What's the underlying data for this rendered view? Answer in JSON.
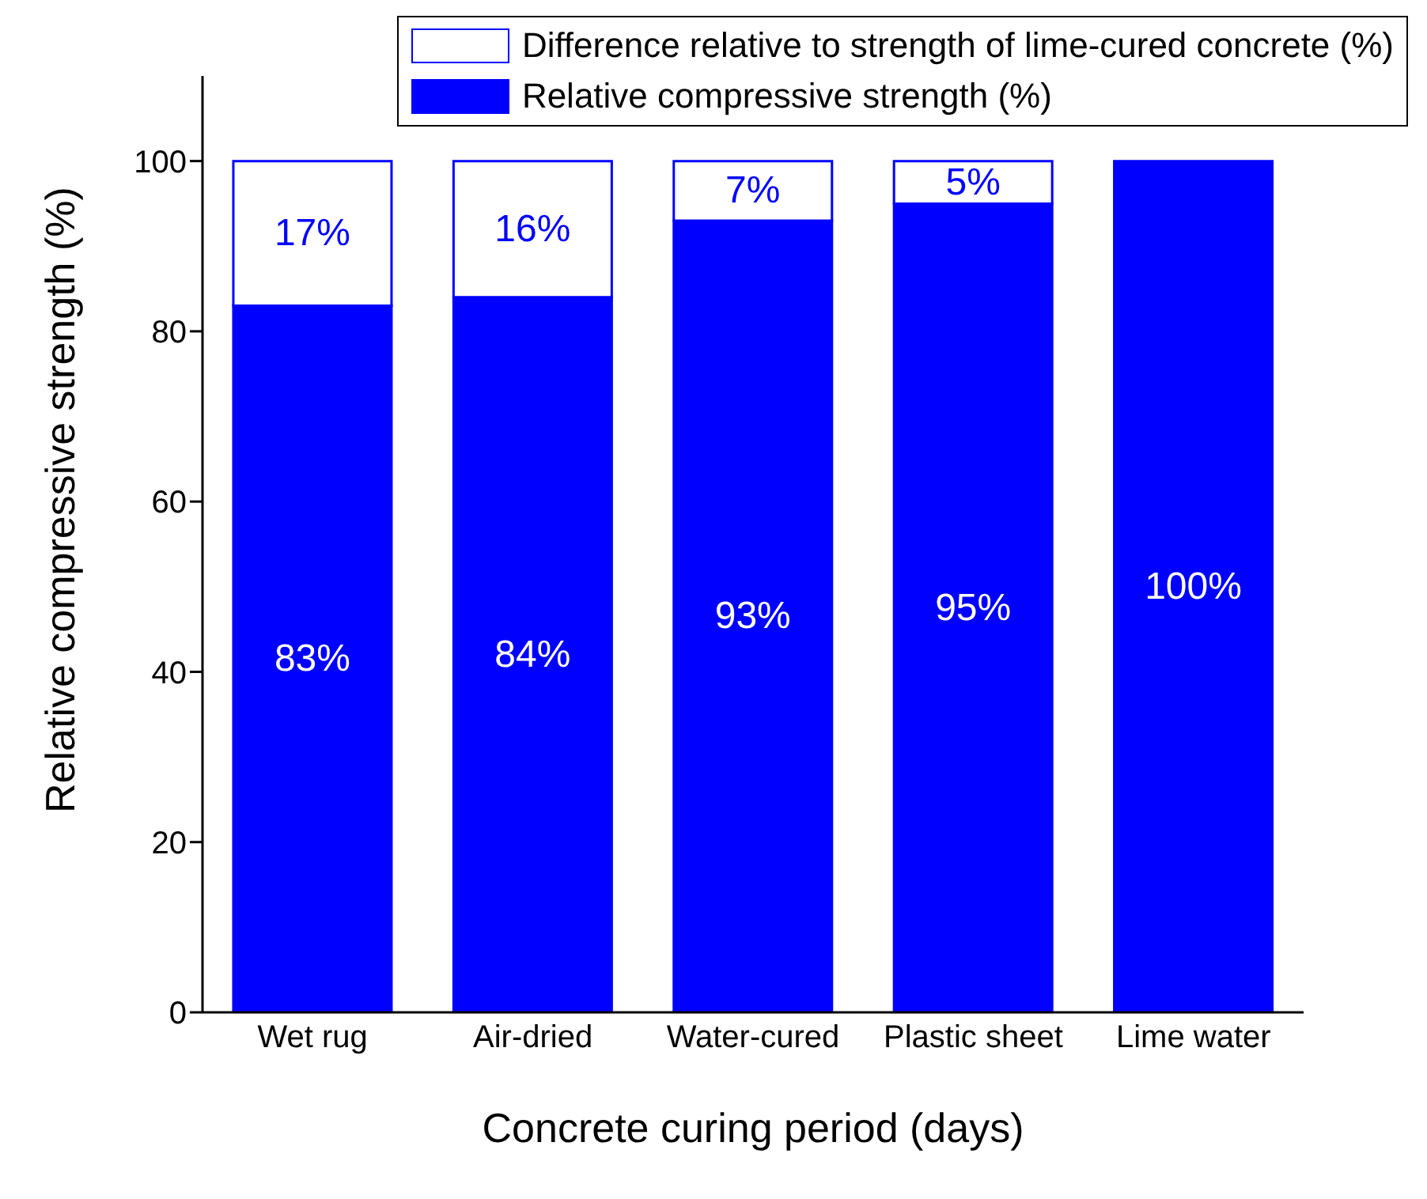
{
  "chart_data": {
    "type": "bar",
    "stacked": true,
    "xlabel": "Concrete curing period (days)",
    "ylabel": "Relative compressive strength (%)",
    "categories": [
      "Wet rug",
      "Air-dried",
      "Water-cured",
      "Plastic sheet",
      "Lime water"
    ],
    "series": [
      {
        "name": "Relative compressive strength (%)",
        "color": "#0000ff",
        "values": [
          83,
          84,
          93,
          95,
          100
        ],
        "value_labels": [
          "83%",
          "84%",
          "93%",
          "95%",
          "100%"
        ]
      },
      {
        "name": "Difference relative to strength of lime-cured concrete (%)",
        "color": "#ffffff",
        "values": [
          17,
          16,
          7,
          5,
          0
        ],
        "value_labels": [
          "17%",
          "16%",
          "7%",
          "5%",
          null
        ]
      }
    ],
    "ylim": [
      0,
      110
    ],
    "yticks": [
      0,
      20,
      40,
      60,
      80,
      100
    ],
    "grid": false,
    "legend": "top"
  }
}
